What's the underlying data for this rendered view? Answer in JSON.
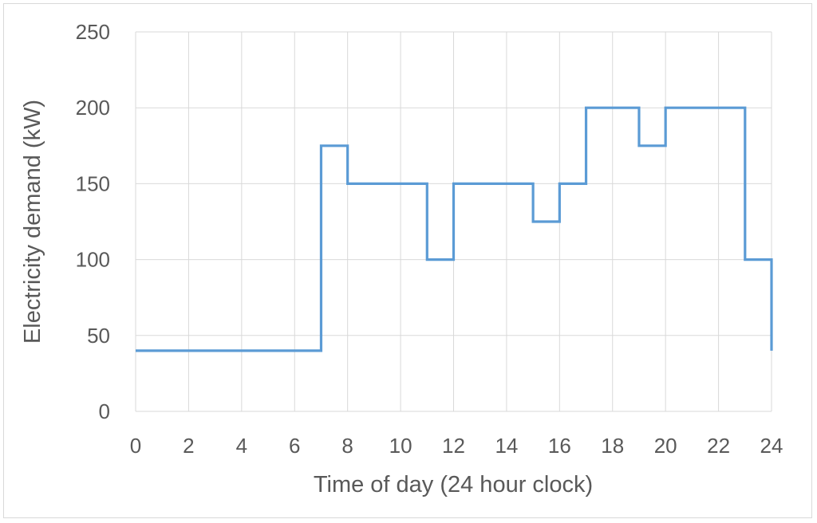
{
  "chart_data": {
    "type": "line",
    "step": "post",
    "title": "",
    "xlabel": "Time of day (24 hour clock)",
    "ylabel": "Electricity demand (kW)",
    "xlim": [
      0,
      24
    ],
    "ylim": [
      0,
      250
    ],
    "xticks": [
      0,
      2,
      4,
      6,
      8,
      10,
      12,
      14,
      16,
      18,
      20,
      22,
      24
    ],
    "yticks": [
      0,
      50,
      100,
      150,
      200,
      250
    ],
    "grid": true,
    "legend": "none",
    "series": [
      {
        "color": "#5b9bd5",
        "x": [
          0,
          1,
          2,
          3,
          4,
          5,
          6,
          7,
          8,
          9,
          10,
          11,
          12,
          13,
          14,
          15,
          16,
          17,
          18,
          19,
          20,
          21,
          22,
          23,
          24
        ],
        "y": [
          40,
          40,
          40,
          40,
          40,
          40,
          40,
          175,
          150,
          150,
          150,
          100,
          150,
          150,
          150,
          125,
          150,
          200,
          200,
          175,
          200,
          200,
          200,
          100,
          40
        ]
      }
    ]
  }
}
